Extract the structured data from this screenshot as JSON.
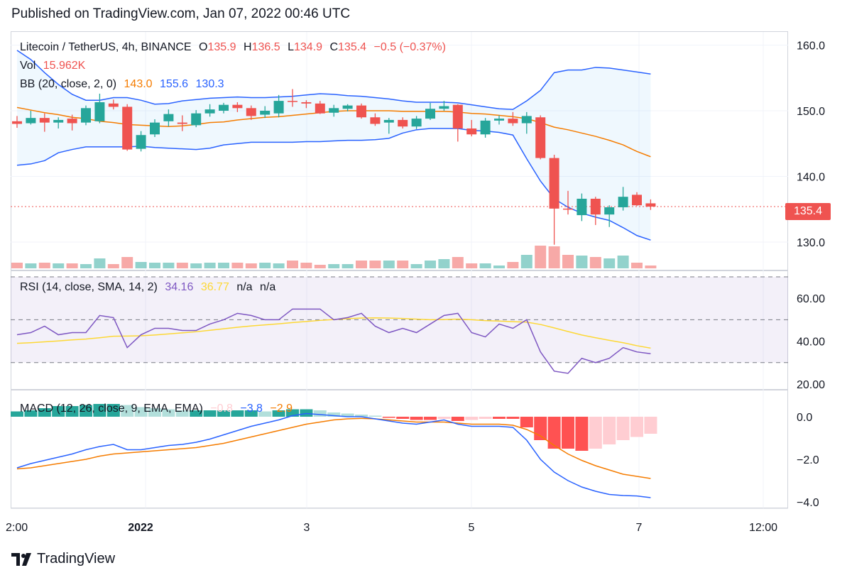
{
  "header": {
    "published": "Published on TradingView.com, Jan 07, 2022 00:46 UTC"
  },
  "brand": {
    "name": "TradingView"
  },
  "legend": {
    "symbol": "Litecoin / TetherUS, 4h, BINANCE",
    "ohlc": {
      "o_label": "O",
      "o": "135.9",
      "h_label": "H",
      "h": "136.5",
      "l_label": "L",
      "l": "134.9",
      "c_label": "C",
      "c": "135.4",
      "change": "−0.5 (−0.37%)"
    },
    "vol": {
      "label": "Vol",
      "value": "15.962K"
    },
    "bb": {
      "label": "BB (20, close, 2, 0)",
      "basis": "143.0",
      "upper": "155.6",
      "lower": "130.3"
    },
    "rsi": {
      "label": "RSI (14, close, SMA, 14, 2)",
      "rsi": "34.16",
      "sma": "36.77",
      "na1": "n/a",
      "na2": "n/a"
    },
    "macd": {
      "label": "MACD (12, 26, close, 9, EMA, EMA)",
      "hist": "−0.8",
      "macd": "−3.8",
      "signal": "−2.9"
    }
  },
  "last_price_tag": "135.4",
  "colors": {
    "up": "#26a69a",
    "down": "#ef5350",
    "bb_band": "#2962ff",
    "bb_basis": "#f57c00",
    "rsi_line": "#7e57c2",
    "rsi_sma": "#fdd835",
    "macd_line": "#2962ff",
    "signal_line": "#f57c00",
    "hist_down_strong": "#ff5252",
    "hist_down_weak": "#ffcdd2",
    "hist_up_strong": "#26a69a",
    "hist_up_weak": "#b2dfdb"
  },
  "chart_data": [
    {
      "type": "candlestick",
      "pane": "price",
      "ylim": [
        126,
        162
      ],
      "y_ticks": [
        "160.0",
        "150.0",
        "140.0",
        "130.0"
      ],
      "y_tick_values": [
        160,
        150,
        140,
        130
      ],
      "candles": [
        {
          "o": 148.4,
          "h": 149.2,
          "l": 147.4,
          "c": 148.0
        },
        {
          "o": 148.1,
          "h": 150.0,
          "l": 147.9,
          "c": 148.9
        },
        {
          "o": 148.9,
          "h": 149.6,
          "l": 146.8,
          "c": 148.2
        },
        {
          "o": 148.2,
          "h": 149.0,
          "l": 147.3,
          "c": 148.6
        },
        {
          "o": 148.8,
          "h": 149.4,
          "l": 147.0,
          "c": 148.1
        },
        {
          "o": 148.2,
          "h": 150.8,
          "l": 147.8,
          "c": 150.4
        },
        {
          "o": 148.4,
          "h": 152.6,
          "l": 148.1,
          "c": 151.3
        },
        {
          "o": 151.1,
          "h": 151.7,
          "l": 150.2,
          "c": 150.6
        },
        {
          "o": 150.6,
          "h": 151.0,
          "l": 143.9,
          "c": 144.1
        },
        {
          "o": 144.2,
          "h": 146.9,
          "l": 143.8,
          "c": 146.3
        },
        {
          "o": 146.4,
          "h": 148.7,
          "l": 146.0,
          "c": 148.2
        },
        {
          "o": 148.4,
          "h": 150.2,
          "l": 147.6,
          "c": 149.5
        },
        {
          "o": 148.2,
          "h": 149.3,
          "l": 146.9,
          "c": 148.0
        },
        {
          "o": 147.8,
          "h": 150.1,
          "l": 147.5,
          "c": 149.6
        },
        {
          "o": 149.6,
          "h": 151.0,
          "l": 149.1,
          "c": 150.2
        },
        {
          "o": 150.0,
          "h": 151.2,
          "l": 149.6,
          "c": 150.9
        },
        {
          "o": 150.9,
          "h": 151.3,
          "l": 149.8,
          "c": 150.4
        },
        {
          "o": 150.4,
          "h": 150.8,
          "l": 148.6,
          "c": 149.2
        },
        {
          "o": 149.4,
          "h": 150.7,
          "l": 148.9,
          "c": 150.0
        },
        {
          "o": 149.6,
          "h": 152.4,
          "l": 149.0,
          "c": 151.5
        },
        {
          "o": 151.5,
          "h": 153.3,
          "l": 150.6,
          "c": 151.4
        },
        {
          "o": 151.3,
          "h": 151.6,
          "l": 150.4,
          "c": 151.1
        },
        {
          "o": 151.1,
          "h": 151.5,
          "l": 149.5,
          "c": 149.6
        },
        {
          "o": 149.7,
          "h": 150.9,
          "l": 149.1,
          "c": 150.4
        },
        {
          "o": 150.3,
          "h": 151.0,
          "l": 149.9,
          "c": 150.8
        },
        {
          "o": 150.8,
          "h": 151.1,
          "l": 148.8,
          "c": 149.0
        },
        {
          "o": 149.0,
          "h": 149.6,
          "l": 147.7,
          "c": 148.0
        },
        {
          "o": 148.2,
          "h": 148.9,
          "l": 146.5,
          "c": 148.6
        },
        {
          "o": 148.6,
          "h": 149.0,
          "l": 147.3,
          "c": 147.6
        },
        {
          "o": 147.6,
          "h": 149.2,
          "l": 147.2,
          "c": 148.8
        },
        {
          "o": 148.8,
          "h": 151.2,
          "l": 148.6,
          "c": 150.3
        },
        {
          "o": 150.3,
          "h": 151.5,
          "l": 150.0,
          "c": 150.7
        },
        {
          "o": 150.9,
          "h": 151.0,
          "l": 145.3,
          "c": 147.3
        },
        {
          "o": 147.3,
          "h": 148.6,
          "l": 146.1,
          "c": 146.4
        },
        {
          "o": 146.4,
          "h": 148.9,
          "l": 145.9,
          "c": 148.5
        },
        {
          "o": 148.5,
          "h": 149.3,
          "l": 147.9,
          "c": 148.8
        },
        {
          "o": 148.8,
          "h": 149.8,
          "l": 147.7,
          "c": 148.1
        },
        {
          "o": 148.1,
          "h": 149.8,
          "l": 146.5,
          "c": 149.2
        },
        {
          "o": 149.0,
          "h": 149.3,
          "l": 142.6,
          "c": 142.8
        },
        {
          "o": 142.8,
          "h": 143.3,
          "l": 129.6,
          "c": 135.1
        },
        {
          "o": 135.1,
          "h": 137.8,
          "l": 134.2,
          "c": 135.0
        },
        {
          "o": 134.1,
          "h": 137.4,
          "l": 133.2,
          "c": 136.6
        },
        {
          "o": 136.6,
          "h": 136.9,
          "l": 132.6,
          "c": 134.2
        },
        {
          "o": 134.2,
          "h": 135.6,
          "l": 132.3,
          "c": 135.3
        },
        {
          "o": 135.3,
          "h": 138.4,
          "l": 134.8,
          "c": 136.9
        },
        {
          "o": 137.2,
          "h": 137.6,
          "l": 135.5,
          "c": 135.6
        },
        {
          "o": 135.9,
          "h": 136.5,
          "l": 134.9,
          "c": 135.4
        }
      ],
      "bb_upper": [
        159.2,
        157.8,
        155.8,
        154.0,
        152.5,
        151.6,
        151.6,
        152.0,
        152.0,
        151.6,
        151.0,
        151.1,
        151.5,
        151.7,
        151.9,
        152.0,
        152.1,
        152.0,
        152.0,
        152.1,
        152.2,
        152.4,
        152.6,
        152.5,
        152.3,
        152.2,
        152.0,
        151.8,
        151.5,
        151.3,
        151.3,
        151.3,
        151.2,
        150.9,
        150.6,
        150.3,
        150.2,
        151.5,
        153.1,
        155.8,
        156.2,
        156.2,
        156.6,
        156.5,
        156.2,
        155.9,
        155.6
      ],
      "bb_basis": [
        150.5,
        150.1,
        149.7,
        149.4,
        149.0,
        148.8,
        148.4,
        148.2,
        147.9,
        147.8,
        147.7,
        147.6,
        147.7,
        147.9,
        148.2,
        148.3,
        148.6,
        148.8,
        149.0,
        149.1,
        149.3,
        149.5,
        149.7,
        149.9,
        150.0,
        150.0,
        150.0,
        150.0,
        149.9,
        149.9,
        149.9,
        149.9,
        149.8,
        149.6,
        149.5,
        149.3,
        149.1,
        148.8,
        148.2,
        147.5,
        147.1,
        146.6,
        146.1,
        145.5,
        144.8,
        143.8,
        143.0
      ],
      "bb_lower": [
        141.7,
        141.9,
        142.4,
        143.6,
        144.1,
        144.5,
        144.5,
        144.5,
        144.5,
        144.6,
        144.4,
        144.3,
        144.2,
        144.1,
        144.3,
        144.8,
        145.0,
        145.2,
        145.2,
        145.2,
        145.2,
        145.3,
        145.3,
        145.4,
        145.5,
        145.5,
        145.6,
        145.8,
        146.6,
        147.1,
        147.3,
        147.3,
        147.3,
        147.0,
        146.9,
        146.7,
        146.3,
        142.7,
        139.3,
        136.6,
        135.3,
        134.4,
        133.8,
        133.3,
        132.2,
        131.0,
        130.3
      ],
      "last_price": 135.4
    },
    {
      "type": "bar",
      "pane": "volume",
      "name": "Vol",
      "values": [
        8,
        7,
        8,
        7,
        7,
        6,
        14,
        6,
        16,
        9,
        8,
        8,
        8,
        7,
        8,
        8,
        8,
        7,
        8,
        7,
        11,
        8,
        5,
        6,
        6,
        11,
        11,
        11,
        11,
        6,
        11,
        13,
        16,
        7,
        7,
        4,
        9,
        19,
        32,
        31,
        19,
        18,
        16,
        14,
        18,
        8,
        4
      ]
    },
    {
      "type": "line",
      "pane": "rsi",
      "ylim": [
        18,
        72
      ],
      "y_ticks": [
        "60.00",
        "40.00",
        "20.00"
      ],
      "y_tick_values": [
        60,
        40,
        20
      ],
      "upper_band": 70,
      "middle_band": 50,
      "lower_band": 30,
      "series": [
        {
          "name": "RSI",
          "values": [
            43,
            44,
            47,
            43,
            44,
            44,
            52,
            51,
            37,
            43,
            46,
            46,
            45,
            45,
            48,
            50,
            53,
            52,
            50,
            50,
            55,
            55,
            55,
            50,
            51,
            53,
            47,
            44,
            46,
            44,
            48,
            52,
            53,
            44,
            42,
            48,
            46,
            50,
            35,
            26,
            25,
            32,
            30,
            32,
            37,
            35,
            34.16
          ]
        },
        {
          "name": "SMA",
          "values": [
            39,
            39.3,
            39.7,
            40.1,
            40.6,
            41.0,
            41.6,
            42.3,
            42.4,
            42.5,
            42.9,
            43.4,
            43.9,
            44.4,
            45.1,
            45.8,
            46.5,
            47.1,
            47.6,
            48.1,
            48.7,
            49.2,
            49.7,
            50.1,
            50.5,
            50.8,
            50.9,
            50.8,
            50.6,
            50.3,
            50.0,
            50.1,
            50.3,
            50.0,
            49.6,
            49.4,
            49.1,
            48.9,
            47.8,
            46.2,
            44.5,
            42.9,
            41.6,
            40.4,
            39.3,
            37.9,
            36.77
          ]
        }
      ]
    },
    {
      "type": "bar+line",
      "pane": "macd",
      "ylim": [
        -4.3,
        1.2
      ],
      "y_ticks": [
        "0.0",
        "−2.0",
        "−4.0"
      ],
      "y_tick_values": [
        0,
        -2,
        -4
      ],
      "histogram": [
        0.25,
        0.3,
        0.4,
        0.5,
        0.5,
        0.55,
        0.6,
        0.6,
        0.55,
        0.45,
        0.4,
        0.35,
        0.3,
        0.3,
        0.3,
        0.3,
        0.3,
        0.3,
        0.25,
        0.3,
        0.35,
        0.35,
        0.3,
        0.2,
        0.15,
        0.1,
        0.05,
        -0.05,
        -0.1,
        -0.15,
        -0.15,
        -0.1,
        -0.2,
        -0.15,
        -0.1,
        -0.1,
        -0.1,
        -0.5,
        -1.1,
        -1.5,
        -1.5,
        -1.6,
        -1.5,
        -1.3,
        -1.1,
        -0.95,
        -0.8
      ],
      "series": [
        {
          "name": "MACD",
          "values": [
            -2.4,
            -2.2,
            -2.05,
            -1.9,
            -1.75,
            -1.55,
            -1.4,
            -1.3,
            -1.55,
            -1.55,
            -1.45,
            -1.35,
            -1.3,
            -1.2,
            -1.05,
            -0.85,
            -0.65,
            -0.45,
            -0.3,
            -0.15,
            0.05,
            0.15,
            0.1,
            0.05,
            0.0,
            0.0,
            -0.1,
            -0.2,
            -0.3,
            -0.35,
            -0.25,
            -0.15,
            -0.35,
            -0.45,
            -0.45,
            -0.45,
            -0.5,
            -1.1,
            -2.0,
            -2.6,
            -3.0,
            -3.3,
            -3.5,
            -3.65,
            -3.7,
            -3.72,
            -3.8
          ]
        },
        {
          "name": "Signal",
          "values": [
            -2.45,
            -2.4,
            -2.3,
            -2.2,
            -2.1,
            -2.0,
            -1.85,
            -1.75,
            -1.7,
            -1.65,
            -1.6,
            -1.55,
            -1.5,
            -1.45,
            -1.35,
            -1.25,
            -1.1,
            -0.95,
            -0.8,
            -0.65,
            -0.5,
            -0.35,
            -0.25,
            -0.15,
            -0.1,
            -0.08,
            -0.1,
            -0.15,
            -0.2,
            -0.25,
            -0.25,
            -0.25,
            -0.3,
            -0.35,
            -0.35,
            -0.35,
            -0.4,
            -0.6,
            -0.9,
            -1.35,
            -1.75,
            -2.05,
            -2.3,
            -2.5,
            -2.7,
            -2.8,
            -2.9
          ]
        }
      ]
    },
    {
      "type": "time_axis",
      "x_tick_labels": [
        "2:00",
        "2022",
        "3",
        "5",
        "7",
        "12:00"
      ]
    }
  ]
}
